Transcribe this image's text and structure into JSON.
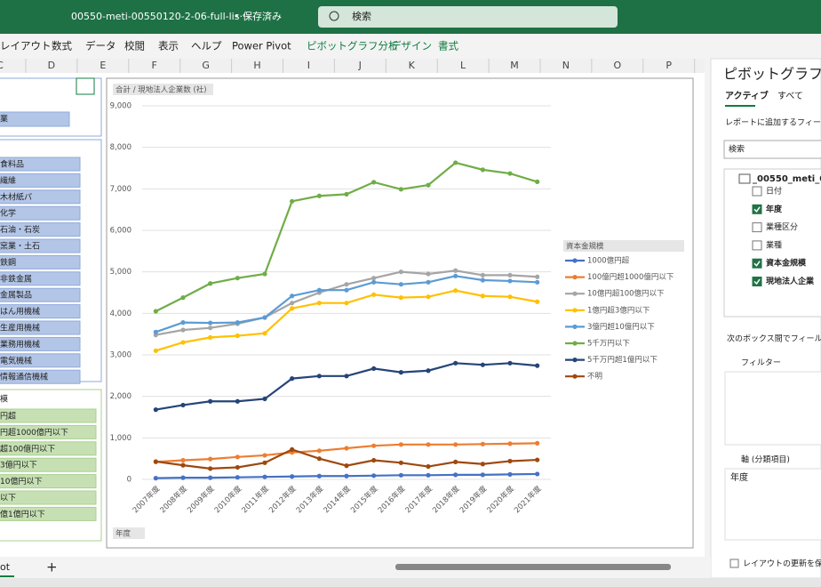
{
  "titlebar": {
    "filename": "00550-meti-00550120-2-06-full-lis···",
    "saved": "• 保存済み",
    "search": "検索"
  },
  "ribbon": {
    "tabs": [
      "レイアウト",
      "数式",
      "データ",
      "校閲",
      "表示",
      "ヘルプ",
      "Power Pivot"
    ],
    "context_tabs": [
      "ピボットグラフ分析",
      "デザイン",
      "書式"
    ]
  },
  "columns": [
    "C",
    "D",
    "E",
    "F",
    "G",
    "H",
    "I",
    "J",
    "K",
    "L",
    "M",
    "N",
    "O",
    "P"
  ],
  "slicers": [
    {
      "items": [
        "業"
      ]
    },
    {
      "items": [
        "食料品",
        "繊維",
        "木材紙パ",
        "化学",
        "石油・石炭",
        "窯業・土石",
        "鉄鋼",
        "非鉄金属",
        "金属製品",
        "はん用機械",
        "生産用機械",
        "業務用機械",
        "電気機械",
        "情報通信機械"
      ]
    },
    {
      "title": "模",
      "items": [
        "円超",
        "円超1000億円以下",
        "超100億円以下",
        "3億円以下",
        "10億円以下",
        "以下",
        "億1億円以下"
      ]
    }
  ],
  "sheet_tab": "ot",
  "chart_data": {
    "type": "line",
    "y_label": "合計 / 現地法人企業数 (社)",
    "x_field": "年度",
    "legend_title": "資本金規模",
    "categories": [
      "2007年度",
      "2008年度",
      "2009年度",
      "2010年度",
      "2011年度",
      "2012年度",
      "2013年度",
      "2014年度",
      "2015年度",
      "2016年度",
      "2017年度",
      "2018年度",
      "2019年度",
      "2020年度",
      "2021年度"
    ],
    "ylim": [
      0,
      9000
    ],
    "yticks": [
      0,
      {
        "value": 1000,
        "label": "1,000"
      },
      {
        "value": 2000,
        "label": "2,000"
      },
      {
        "value": 3000,
        "label": "3,000"
      },
      {
        "value": 4000,
        "label": "4,000"
      },
      {
        "value": 5000,
        "label": "5,000"
      },
      {
        "value": 6000,
        "label": "6,000"
      },
      {
        "value": 7000,
        "label": "7,000"
      },
      {
        "value": 8000,
        "label": "8,000"
      },
      {
        "value": 9000,
        "label": "9,000"
      }
    ],
    "grid": true,
    "legend": "right",
    "series": [
      {
        "name": "1000億円超",
        "color": "#4472c4",
        "values": [
          30,
          40,
          40,
          50,
          60,
          70,
          80,
          80,
          90,
          100,
          100,
          110,
          110,
          120,
          130
        ]
      },
      {
        "name": "100億円超1000億円以下",
        "color": "#ed7d31",
        "values": [
          420,
          460,
          490,
          540,
          580,
          650,
          690,
          750,
          810,
          840,
          840,
          840,
          850,
          860,
          870
        ]
      },
      {
        "name": "10億円超100億円以下",
        "color": "#a5a5a5",
        "values": [
          3480,
          3600,
          3650,
          3750,
          3900,
          4250,
          4500,
          4700,
          4850,
          5000,
          4950,
          5030,
          4920,
          4920,
          4880
        ]
      },
      {
        "name": "1億円超3億円以下",
        "color": "#ffc000",
        "values": [
          3100,
          3300,
          3420,
          3460,
          3520,
          4120,
          4250,
          4250,
          4450,
          4380,
          4400,
          4550,
          4420,
          4400,
          4280
        ]
      },
      {
        "name": "3億円超10億円以下",
        "color": "#5b9bd5",
        "values": [
          3550,
          3780,
          3770,
          3780,
          3900,
          4420,
          4560,
          4560,
          4750,
          4700,
          4750,
          4900,
          4800,
          4780,
          4750
        ]
      },
      {
        "name": "5千万円以下",
        "color": "#70ad47",
        "values": [
          4050,
          4380,
          4720,
          4850,
          4950,
          6700,
          6830,
          6870,
          7160,
          6990,
          7090,
          7630,
          7460,
          7370,
          7170
        ]
      },
      {
        "name": "5千万円超1億円以下",
        "color": "#264478",
        "values": [
          1680,
          1790,
          1880,
          1880,
          1940,
          2430,
          2490,
          2490,
          2670,
          2580,
          2620,
          2800,
          2760,
          2800,
          2740
        ]
      },
      {
        "name": "不明",
        "color": "#9e480e",
        "values": [
          430,
          340,
          260,
          290,
          400,
          720,
          500,
          330,
          460,
          400,
          310,
          420,
          370,
          440,
          470
        ]
      }
    ]
  },
  "panel": {
    "title": "ピボットグラフのフ",
    "tabs": [
      "アクティブ",
      "すべて"
    ],
    "prompt": "レポートに追加するフィールド",
    "search": "検索",
    "table": "_00550_meti_0",
    "fields": [
      {
        "name": "日付",
        "checked": false
      },
      {
        "name": "年度",
        "checked": true
      },
      {
        "name": "業種区分",
        "checked": false
      },
      {
        "name": "業種",
        "checked": false
      },
      {
        "name": "資本金規模",
        "checked": true
      },
      {
        "name": "現地法人企業",
        "checked": true
      }
    ],
    "areas_prompt": "次のボックス間でフィールドを",
    "filter": "フィルター",
    "axis": "軸 (分類項目)",
    "axis_item": "年度",
    "defer": "レイアウトの更新を保"
  }
}
